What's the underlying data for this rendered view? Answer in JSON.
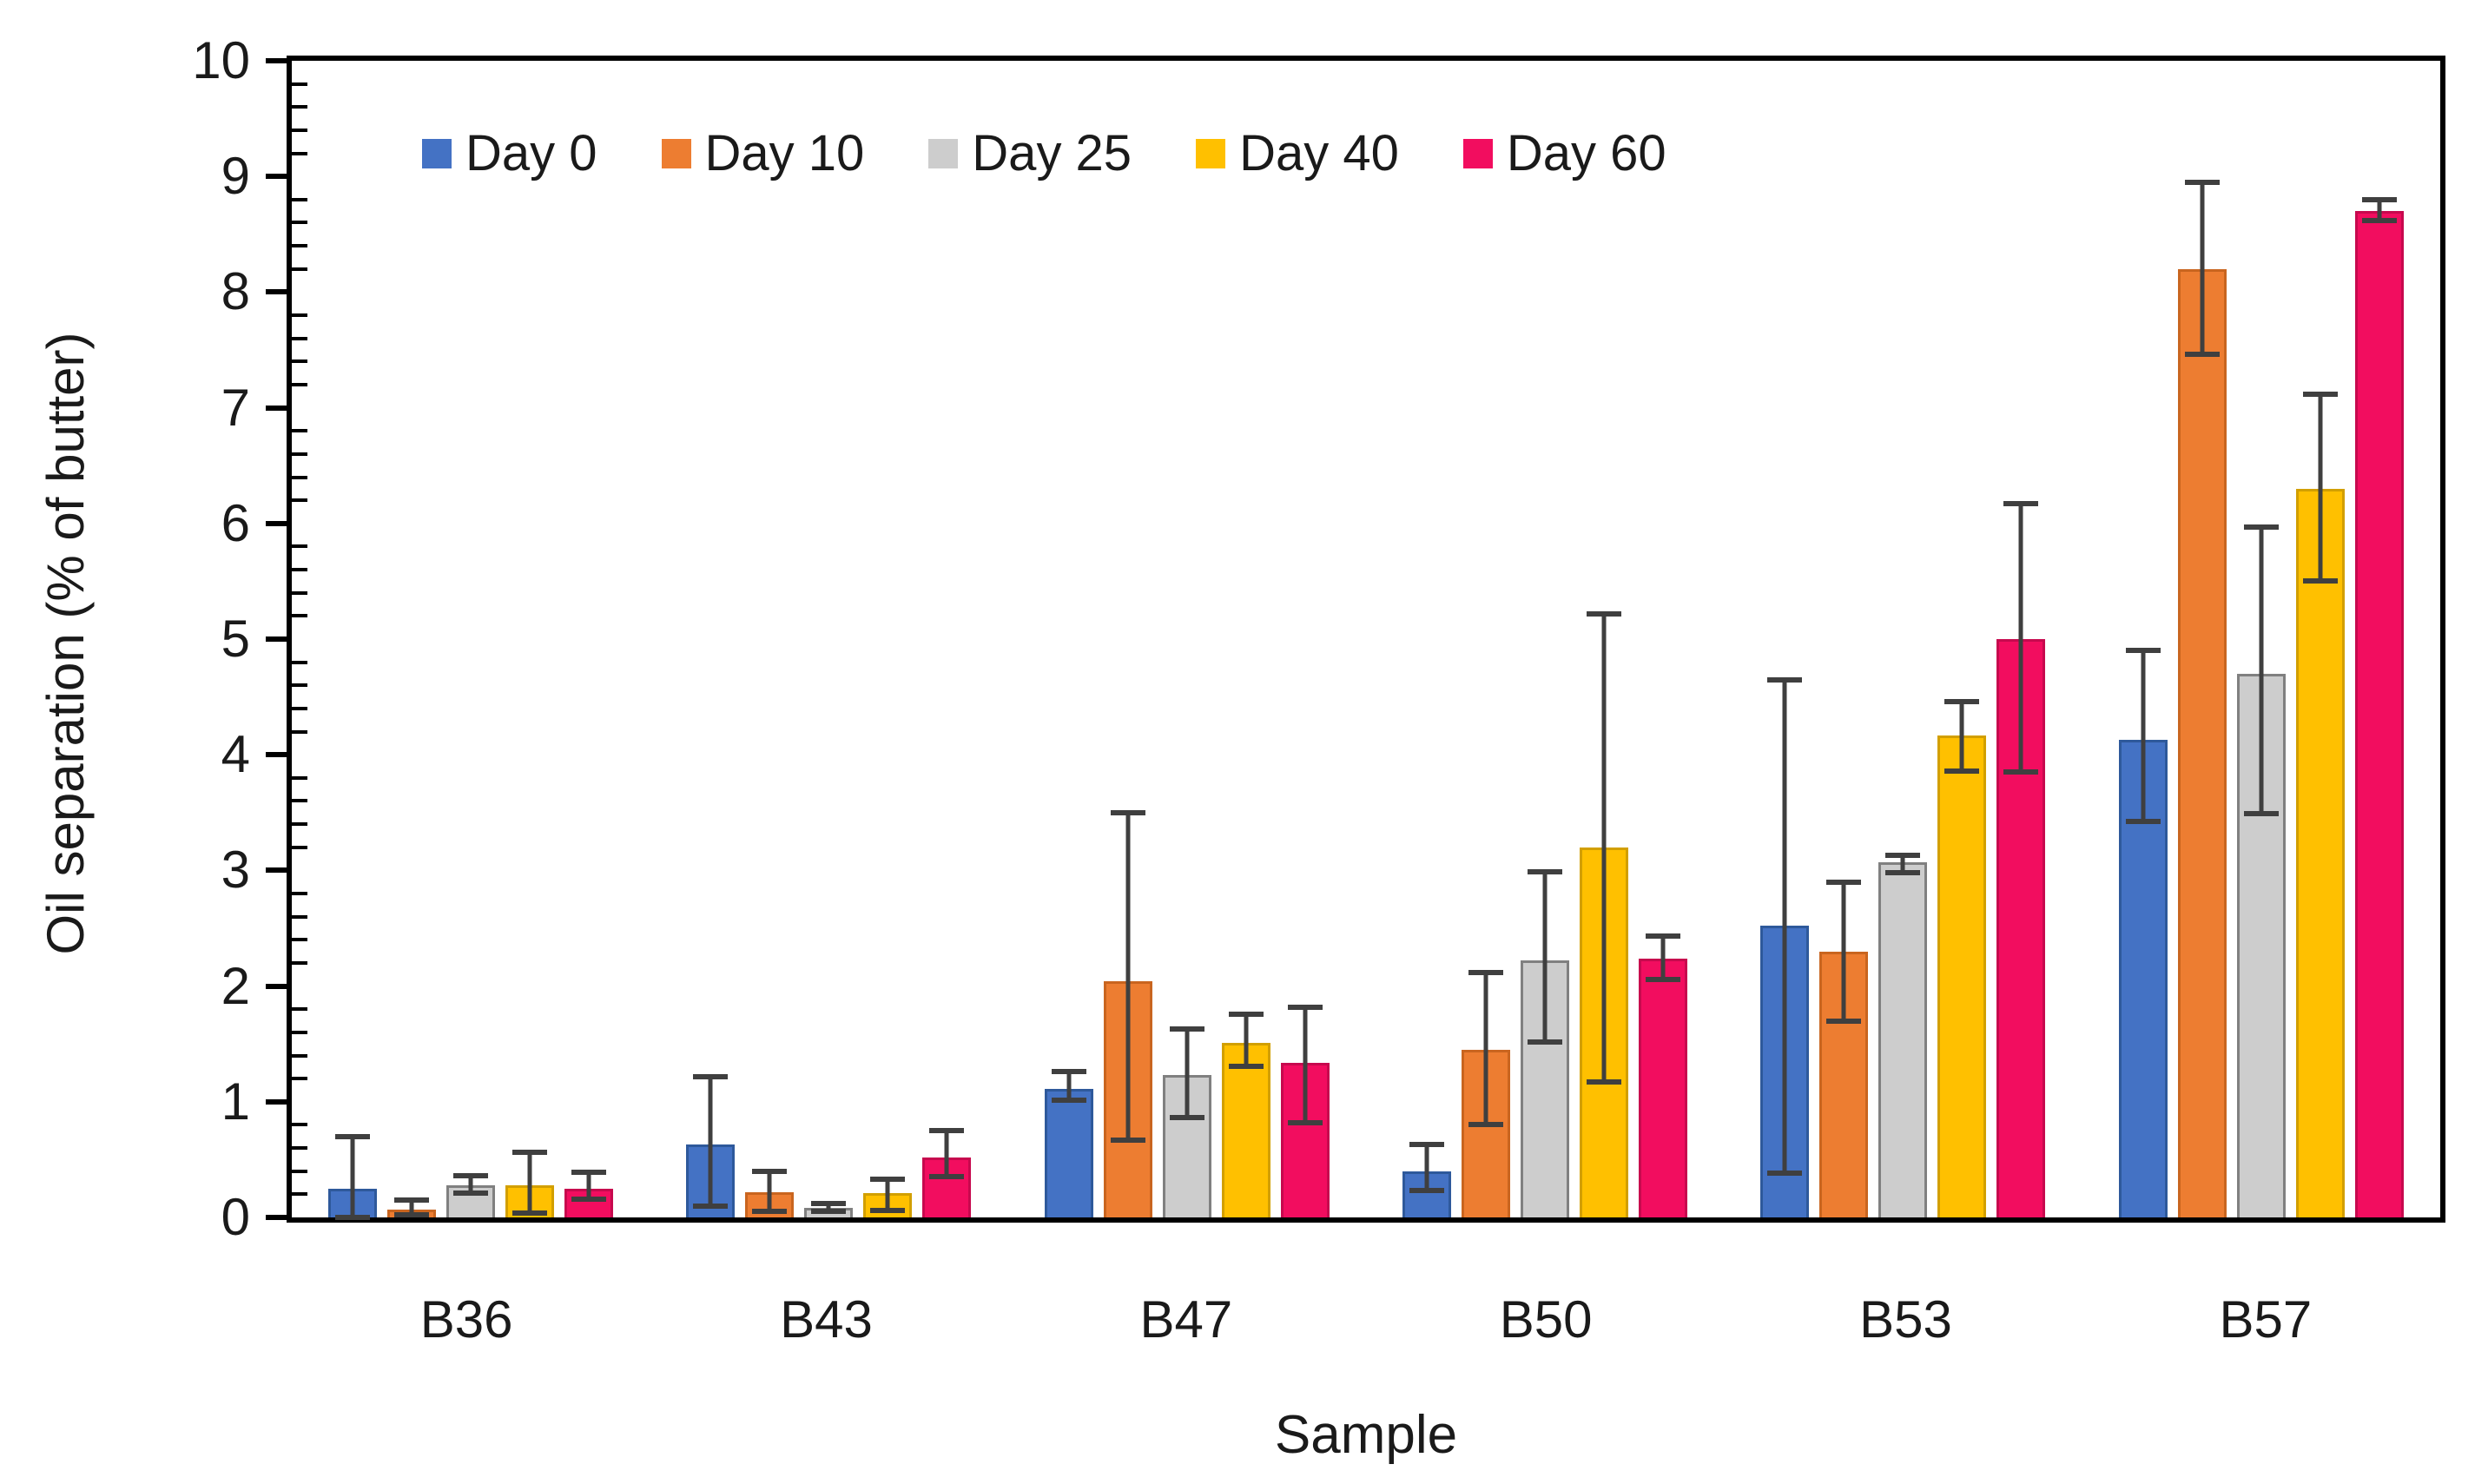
{
  "chart_data": {
    "type": "bar",
    "title": "",
    "xlabel": "Sample",
    "ylabel": "Oil separation (% of butter)",
    "ylim": [
      0,
      10
    ],
    "y_major_step": 1,
    "y_minor_step": 0.2,
    "grid": false,
    "legend_position": "top-left-inside",
    "background": "#FFFFFF",
    "axis_color": "#000000",
    "error_bar_color": "#3F3F3F",
    "categories": [
      "B36",
      "B43",
      "B47",
      "B50",
      "B53",
      "B57"
    ],
    "series": [
      {
        "name": "Day 0",
        "color": "#4472C4",
        "edge": "#2E599B",
        "pattern": "solid",
        "values": [
          0.25,
          0.63,
          1.11,
          0.4,
          2.52,
          4.13
        ],
        "err_low": [
          0.0,
          0.1,
          1.01,
          0.23,
          0.38,
          3.42
        ],
        "err_high": [
          0.7,
          1.22,
          1.26,
          0.63,
          4.65,
          4.9
        ]
      },
      {
        "name": "Day 10",
        "color": "#ED7D31",
        "edge": "#C9651F",
        "pattern": "solid",
        "values": [
          0.07,
          0.22,
          2.04,
          1.45,
          2.3,
          8.2
        ],
        "err_low": [
          0.02,
          0.05,
          0.67,
          0.8,
          1.7,
          7.46
        ],
        "err_high": [
          0.15,
          0.4,
          3.5,
          2.12,
          2.9,
          8.95
        ]
      },
      {
        "name": "Day 25",
        "color": "#A6A6A6",
        "edge": "#808080",
        "pattern": "dots",
        "values": [
          0.28,
          0.08,
          1.23,
          2.22,
          3.07,
          4.7
        ],
        "err_low": [
          0.21,
          0.05,
          0.86,
          1.52,
          2.98,
          3.49
        ],
        "err_high": [
          0.36,
          0.12,
          1.63,
          2.99,
          3.13,
          5.97
        ]
      },
      {
        "name": "Day 40",
        "color": "#FFC000",
        "edge": "#D29F00",
        "pattern": "solid",
        "values": [
          0.28,
          0.21,
          1.51,
          3.2,
          4.17,
          6.3
        ],
        "err_low": [
          0.04,
          0.06,
          1.31,
          1.17,
          3.86,
          5.5
        ],
        "err_high": [
          0.56,
          0.33,
          1.76,
          5.22,
          4.46,
          7.12
        ]
      },
      {
        "name": "Day 60",
        "color": "#F20D5F",
        "edge": "#C7094E",
        "pattern": "solid",
        "values": [
          0.25,
          0.52,
          1.34,
          2.24,
          5.0,
          8.7
        ],
        "err_low": [
          0.16,
          0.35,
          0.82,
          2.06,
          3.85,
          8.62
        ],
        "err_high": [
          0.39,
          0.75,
          1.82,
          2.43,
          6.17,
          8.8
        ]
      }
    ],
    "y_tick_labels": [
      "0",
      "1",
      "2",
      "3",
      "4",
      "5",
      "6",
      "7",
      "8",
      "9",
      "10"
    ]
  }
}
